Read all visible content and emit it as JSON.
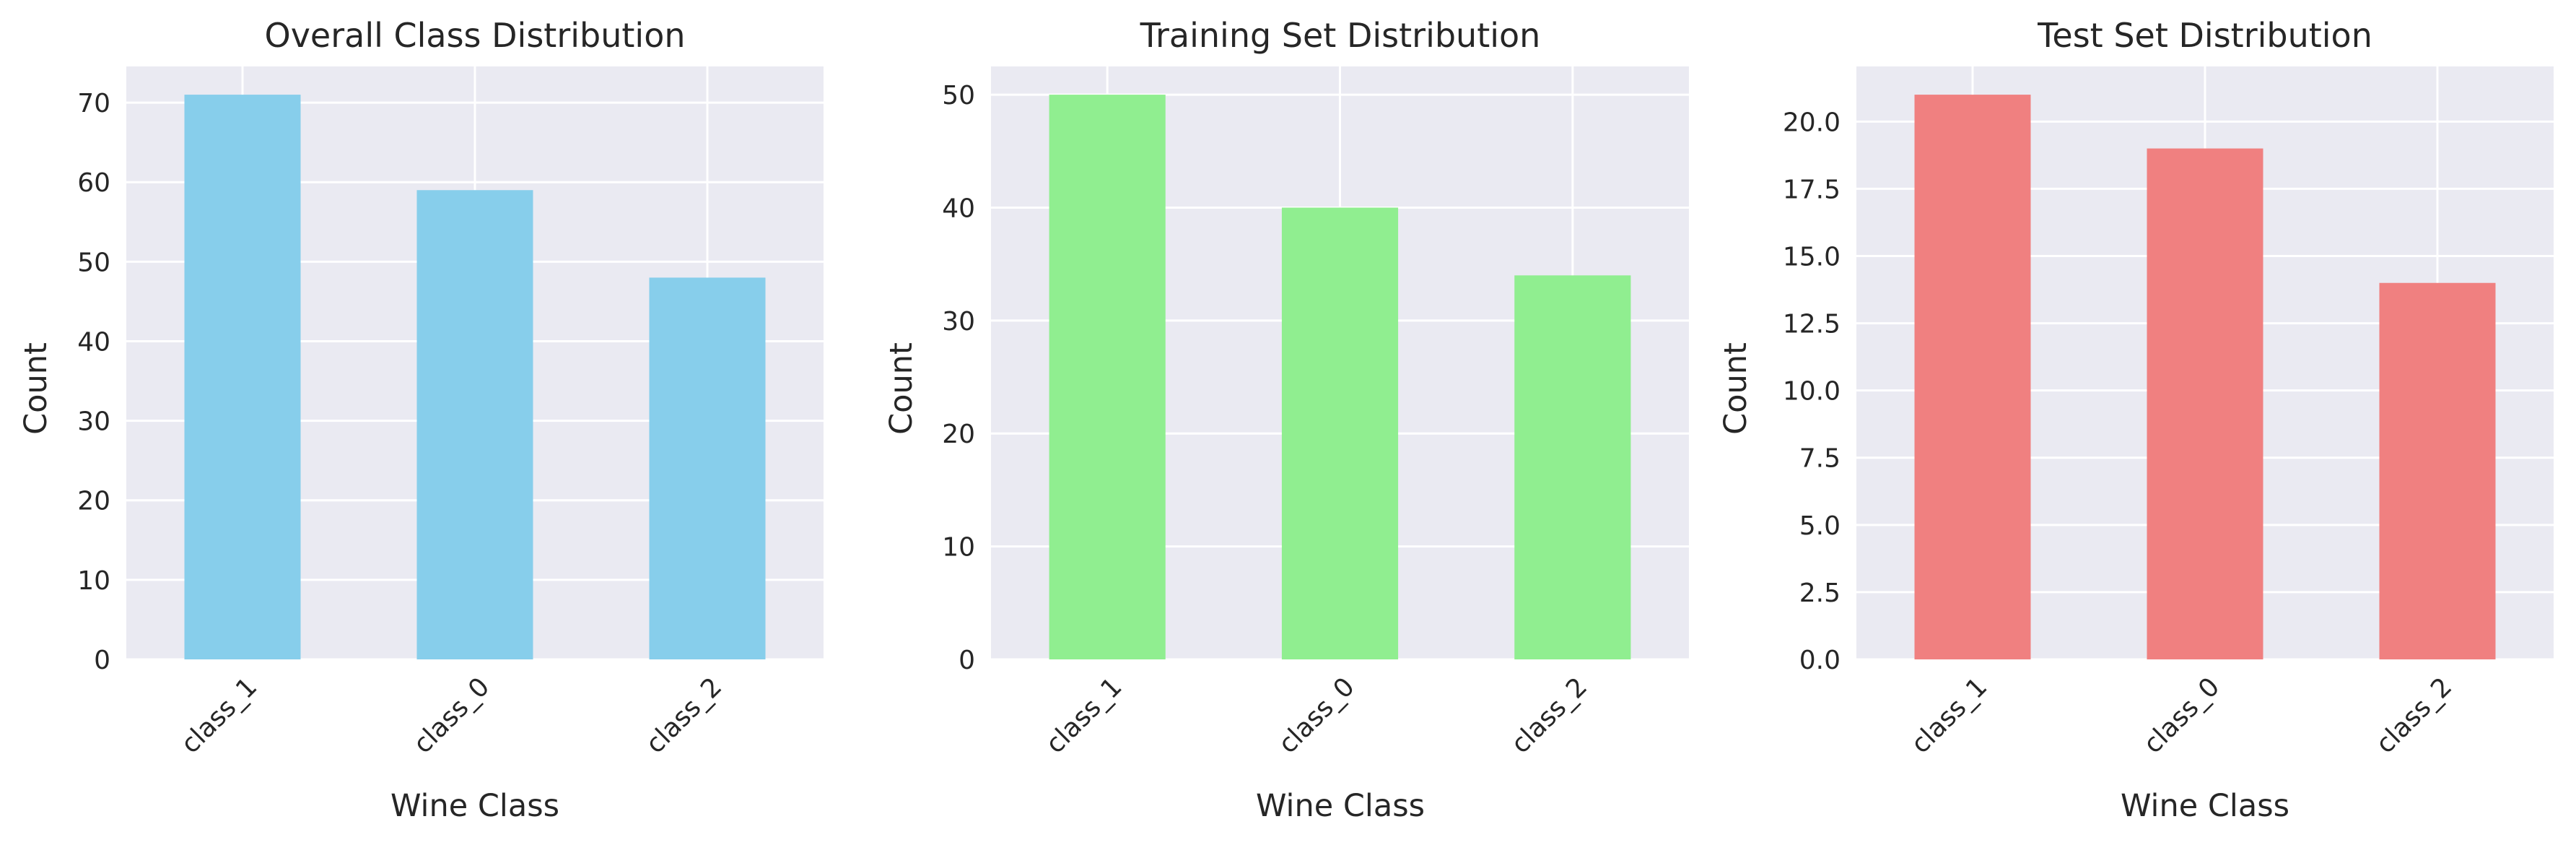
{
  "chart_data": [
    {
      "type": "bar",
      "title": "Overall Class Distribution",
      "xlabel": "Wine Class",
      "ylabel": "Count",
      "categories": [
        "class_1",
        "class_0",
        "class_2"
      ],
      "values": [
        71,
        59,
        48
      ],
      "ylim": [
        0,
        74.55
      ],
      "yticks": [
        0,
        10,
        20,
        30,
        40,
        50,
        60,
        70
      ],
      "ytick_labels": [
        "0",
        "10",
        "20",
        "30",
        "40",
        "50",
        "60",
        "70"
      ],
      "color": "#87ceeb",
      "grid": true,
      "legend": "none"
    },
    {
      "type": "bar",
      "title": "Training Set Distribution",
      "xlabel": "Wine Class",
      "ylabel": "Count",
      "categories": [
        "class_1",
        "class_0",
        "class_2"
      ],
      "values": [
        50,
        40,
        34
      ],
      "ylim": [
        0,
        52.5
      ],
      "yticks": [
        0,
        10,
        20,
        30,
        40,
        50
      ],
      "ytick_labels": [
        "0",
        "10",
        "20",
        "30",
        "40",
        "50"
      ],
      "color": "#90ee90",
      "grid": true,
      "legend": "none"
    },
    {
      "type": "bar",
      "title": "Test Set Distribution",
      "xlabel": "Wine Class",
      "ylabel": "Count",
      "categories": [
        "class_1",
        "class_0",
        "class_2"
      ],
      "values": [
        21,
        19,
        14
      ],
      "ylim": [
        0,
        22.05
      ],
      "yticks": [
        0,
        2.5,
        5,
        7.5,
        10,
        12.5,
        15,
        17.5,
        20
      ],
      "ytick_labels": [
        "0.0",
        "2.5",
        "5.0",
        "7.5",
        "10.0",
        "12.5",
        "15.0",
        "17.5",
        "20.0"
      ],
      "color": "#f08080",
      "grid": true,
      "legend": "none"
    }
  ]
}
